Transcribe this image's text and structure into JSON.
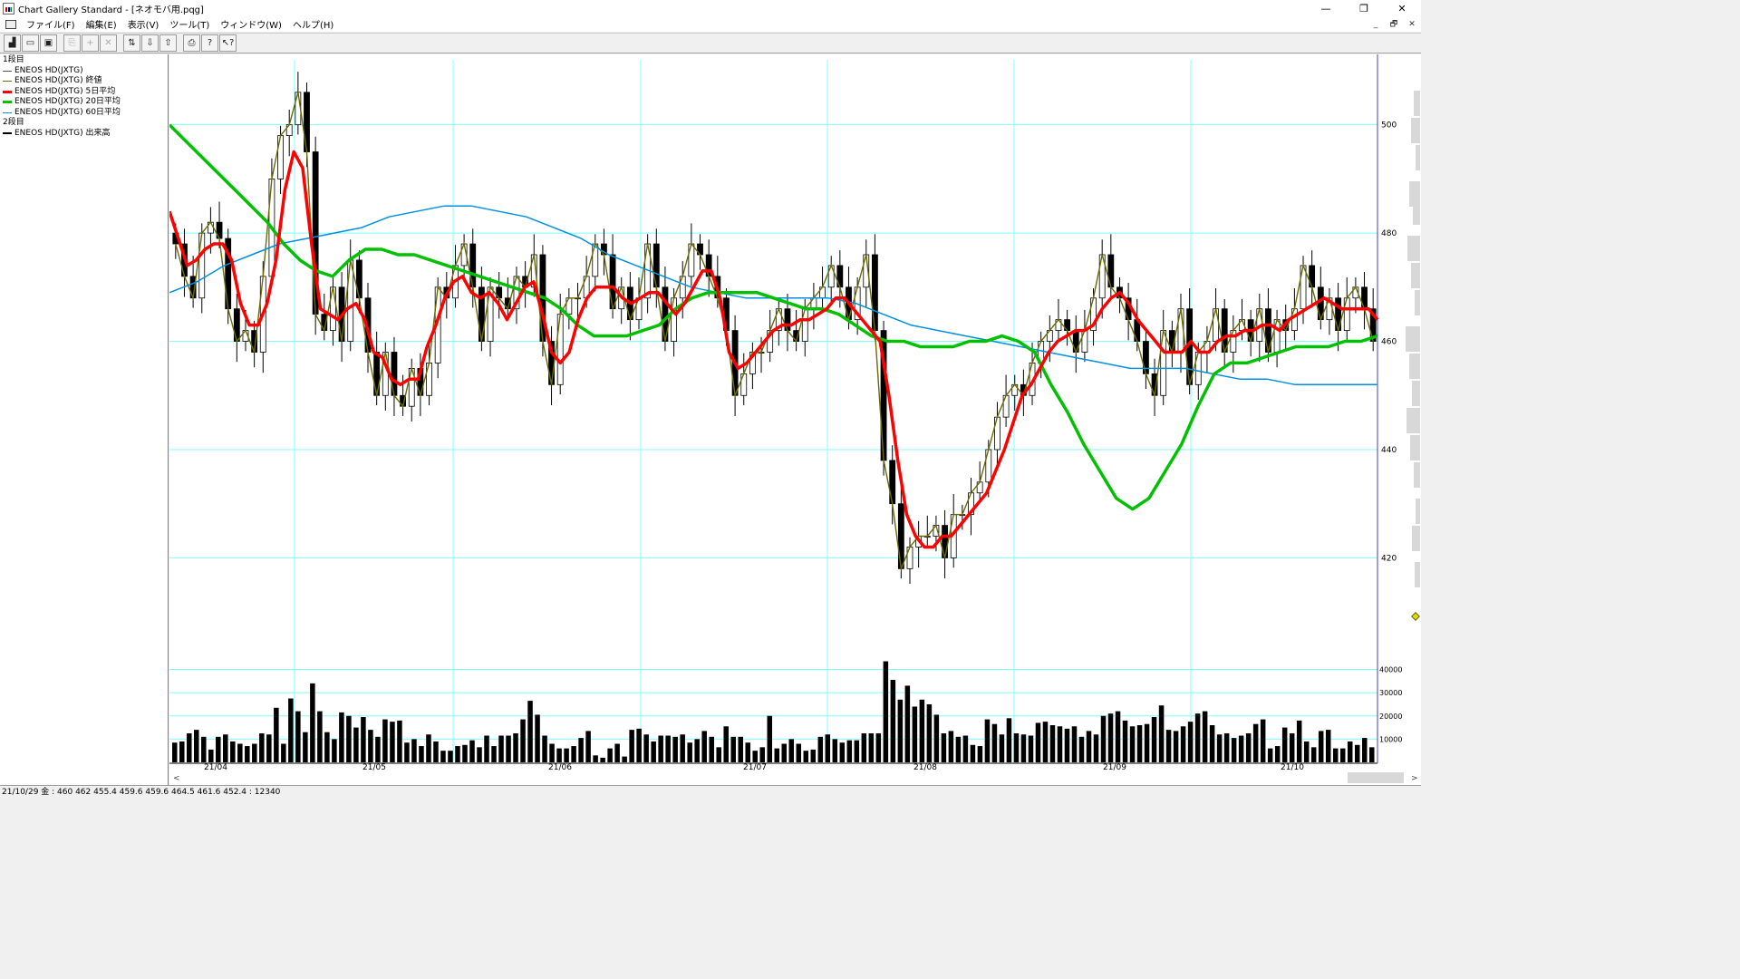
{
  "window": {
    "title": "Chart Gallery Standard - [ネオモバ用.pqg]",
    "controls": [
      "—",
      "❐",
      "✕"
    ]
  },
  "menu": {
    "items": [
      "ファイル(F)",
      "編集(E)",
      "表示(V)",
      "ツール(T)",
      "ウィンドウ(W)",
      "ヘルプ(H)"
    ],
    "mdi_controls": [
      "_",
      "🗗",
      "✕"
    ]
  },
  "toolbar": {
    "buttons": [
      {
        "name": "chart-type-icon",
        "glyph": "▟",
        "enabled": true
      },
      {
        "name": "open-folder-icon",
        "glyph": "▭",
        "enabled": true
      },
      {
        "name": "save-icon",
        "glyph": "▣",
        "enabled": true
      },
      {
        "name": "copy-icon",
        "glyph": "⎘",
        "enabled": false
      },
      {
        "name": "add-icon",
        "glyph": "+",
        "enabled": false
      },
      {
        "name": "delete-icon",
        "glyph": "✕",
        "enabled": false
      },
      {
        "name": "sort-icon",
        "glyph": "⇅",
        "enabled": true
      },
      {
        "name": "download-icon",
        "glyph": "⇩",
        "enabled": true
      },
      {
        "name": "upload-icon",
        "glyph": "⇧",
        "enabled": true
      },
      {
        "name": "print-icon",
        "glyph": "⎙",
        "enabled": true
      },
      {
        "name": "help-icon",
        "glyph": "?",
        "enabled": true
      },
      {
        "name": "context-help-icon",
        "glyph": "↖?",
        "enabled": true
      }
    ]
  },
  "legend": {
    "rows": [
      {
        "text": "1段目",
        "color": ""
      },
      {
        "text": "ENEOS HD(JXTG)",
        "color": "#555555"
      },
      {
        "text": "ENEOS HD(JXTG) 終値",
        "color": "#6b6b00"
      },
      {
        "text": "ENEOS HD(JXTG) 5日平均",
        "color": "#ff0000"
      },
      {
        "text": "ENEOS HD(JXTG) 20日平均",
        "color": "#00c000"
      },
      {
        "text": "ENEOS HD(JXTG) 60日平均",
        "color": "#0090e0"
      },
      {
        "text": "2段目",
        "color": ""
      },
      {
        "text": "ENEOS HD(JXTG) 出来高",
        "color": "#000000"
      }
    ]
  },
  "status": {
    "text": "21/10/29 金 : 460 462 455.4 459.6  459.6 464.5 461.6 452.4 : 12340"
  },
  "colors": {
    "ma5": "#ff0000",
    "ma20": "#00c000",
    "ma60": "#0090e0",
    "close_line": "#6b6b00",
    "grid": "#80ffff",
    "candle": "#000000"
  },
  "chart_data": {
    "type": "candlestick",
    "price": {
      "ylim": [
        405,
        512
      ],
      "ticks": [
        420,
        440,
        460,
        480,
        500
      ],
      "close": [
        478,
        472,
        468,
        480,
        482,
        479,
        466,
        460,
        462,
        458,
        472,
        490,
        498,
        500,
        506,
        495,
        465,
        462,
        470,
        460,
        475,
        468,
        458,
        450,
        458,
        450,
        448,
        455,
        450,
        456,
        470,
        468,
        474,
        478,
        470,
        460,
        470,
        468,
        466,
        472,
        470,
        476,
        460,
        452,
        465,
        468,
        468,
        472,
        478,
        476,
        466,
        470,
        464,
        468,
        478,
        470,
        460,
        468,
        472,
        478,
        476,
        472,
        468,
        462,
        450,
        454,
        458,
        458,
        462,
        466,
        462,
        460,
        466,
        468,
        470,
        474,
        470,
        464,
        470,
        476,
        462,
        438,
        430,
        418,
        422,
        424,
        424,
        426,
        420,
        428,
        428,
        432,
        434,
        440,
        446,
        450,
        452,
        450,
        456,
        460,
        462,
        464,
        462,
        458,
        462,
        468,
        476,
        470,
        468,
        464,
        460,
        454,
        450,
        462,
        458,
        466,
        452,
        458,
        460,
        466,
        458,
        462,
        464,
        460,
        466,
        458,
        464,
        462,
        466,
        474,
        470,
        464,
        468,
        462,
        468,
        470,
        466,
        460
      ],
      "ma5": [
        484,
        479,
        474,
        475,
        477,
        478,
        478,
        475,
        467,
        463,
        463,
        467,
        475,
        488,
        495,
        492,
        478,
        466,
        465,
        464,
        466,
        467,
        464,
        458,
        457,
        453,
        452,
        453,
        453,
        459,
        463,
        468,
        471,
        472,
        469,
        468,
        469,
        467,
        464,
        467,
        470,
        471,
        465,
        458,
        456,
        458,
        464,
        468,
        470,
        470,
        470,
        468,
        467,
        468,
        469,
        469,
        467,
        465,
        467,
        470,
        473,
        473,
        468,
        458,
        455,
        456,
        458,
        460,
        462,
        463,
        463,
        464,
        464,
        465,
        466,
        468,
        468,
        466,
        464,
        462,
        460,
        450,
        438,
        428,
        424,
        422,
        422,
        424,
        424,
        426,
        428,
        430,
        432,
        436,
        440,
        445,
        450,
        452,
        455,
        458,
        460,
        461,
        462,
        462,
        463,
        466,
        468,
        469,
        467,
        464,
        462,
        460,
        458,
        458,
        458,
        460,
        458,
        458,
        460,
        461,
        461,
        462,
        462,
        463,
        463,
        462,
        464,
        465,
        466,
        467,
        468,
        467,
        466,
        466,
        466,
        466,
        464
      ],
      "ma20": [
        500,
        497,
        494,
        491,
        488,
        485,
        482,
        478,
        475,
        473,
        472,
        475,
        477,
        477,
        476,
        476,
        475,
        474,
        473,
        472,
        471,
        470,
        469,
        468,
        466,
        463,
        461,
        461,
        461,
        462,
        463,
        466,
        468,
        469,
        469,
        469,
        469,
        468,
        467,
        466,
        466,
        465,
        463,
        461,
        460,
        460,
        459,
        459,
        459,
        460,
        460,
        461,
        460,
        458,
        452,
        447,
        441,
        436,
        431,
        429,
        431,
        436,
        441,
        448,
        454,
        456,
        456,
        457,
        458,
        459,
        459,
        459,
        460,
        460,
        461
      ],
      "ma60": [
        469,
        471,
        474,
        476,
        478,
        479,
        480,
        481,
        483,
        484,
        485,
        485,
        484,
        483,
        481,
        479,
        476,
        474,
        472,
        470,
        469,
        468,
        468,
        468,
        468,
        467,
        465,
        463,
        462,
        461,
        460,
        459,
        458,
        457,
        456,
        455,
        455,
        455,
        454,
        453,
        453,
        452,
        452,
        452,
        452
      ]
    },
    "volume": {
      "ylim": [
        0,
        48000
      ],
      "ticks": [
        10000,
        20000,
        30000,
        40000
      ],
      "values": [
        8500,
        9000,
        12500,
        14000,
        11000,
        5500,
        11000,
        12000,
        9000,
        8000,
        7000,
        8000,
        12500,
        12000,
        23500,
        8000,
        27500,
        22000,
        13000,
        34000,
        22000,
        13000,
        10000,
        21500,
        20000,
        15000,
        19500,
        14000,
        11000,
        18500,
        17500,
        18000,
        8500,
        10000,
        7000,
        12000,
        9000,
        5000,
        5000,
        7000,
        7500,
        9500,
        6500,
        11500,
        7000,
        11500,
        11500,
        12500,
        18500,
        26500,
        20500,
        11500,
        8000,
        6000,
        6000,
        7000,
        10500,
        13500,
        3000,
        2000,
        6000,
        8000,
        2500,
        14000,
        14500,
        12000,
        9000,
        11500,
        11500,
        11000,
        12000,
        8500,
        10000,
        13500,
        11000,
        6500,
        15500,
        11000,
        11000,
        8500,
        5000,
        6500,
        20000,
        6000,
        8000,
        10000,
        8000,
        5000,
        5500,
        11000,
        12000,
        10000,
        8500,
        9500,
        9500,
        12500,
        12500,
        12500,
        43500,
        35500,
        27000,
        33000,
        24000,
        27000,
        25000,
        20500,
        12500,
        13500,
        11000,
        11500,
        7500,
        7000,
        18500,
        16500,
        12000,
        19000,
        12500,
        12000,
        11500,
        17000,
        17500,
        16000,
        15500,
        14500,
        15500,
        11000,
        13500,
        12000,
        20000,
        21000,
        22000,
        18000,
        15500,
        16000,
        16500,
        19500,
        24500,
        14000,
        13500,
        15500,
        17500,
        21000,
        22000,
        16000,
        12000,
        12500,
        10500,
        11500,
        12500,
        16500,
        18500,
        6000,
        7000,
        15000,
        12500,
        18000,
        9000,
        6500,
        13500,
        14000,
        6000,
        6000,
        9000,
        7500,
        10500,
        6500
      ],
      "gaps": []
    },
    "x_axis": {
      "labels": [
        "21/04",
        "21/05",
        "21/06",
        "21/07",
        "21/08",
        "21/09",
        "21/10"
      ]
    }
  }
}
